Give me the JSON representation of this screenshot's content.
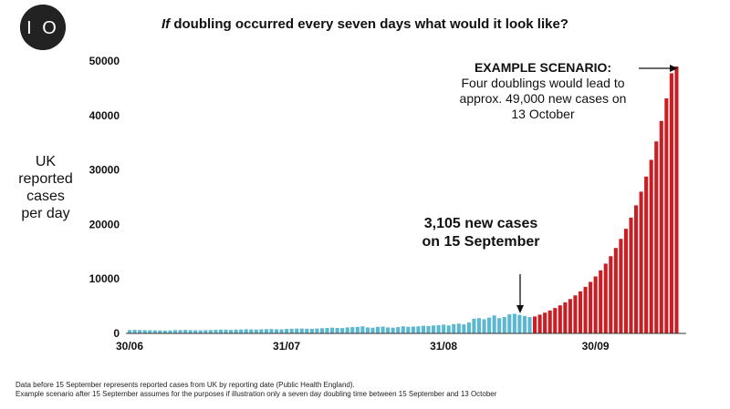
{
  "logo": {
    "text": "I O"
  },
  "header": {
    "title_emphasis": "If",
    "title_rest": " doubling occurred every seven days what would it look like?"
  },
  "axis": {
    "ylabel": "UK\nreported\ncases\nper day"
  },
  "annotations": {
    "scenario_head": "EXAMPLE SCENARIO:",
    "scenario_body": "Four doublings would lead to approx. 49,000 new cases on 13 October",
    "sep_label": "3,105 new cases\non 15 September"
  },
  "footnotes": [
    "Data before 15 September represents reported cases from UK by reporting date (Public Health England).",
    "Example scenario after 15 September assumes for the purposes if illustration only a seven day doubling time between 15 September and 13 October"
  ],
  "chart_data": {
    "type": "bar",
    "ylim": [
      0,
      50000
    ],
    "yticks": [
      0,
      10000,
      20000,
      30000,
      40000,
      50000
    ],
    "xtick_labels": [
      {
        "label": "30/06",
        "day_index": 0
      },
      {
        "label": "31/07",
        "day_index": 31
      },
      {
        "label": "31/08",
        "day_index": 62
      },
      {
        "label": "30/09",
        "day_index": 92
      }
    ],
    "grid": false,
    "colors": {
      "reported": "#5bb8d0",
      "scenario": "#c81e24"
    },
    "series": [
      {
        "name": "reported",
        "start_day_index": 0,
        "values": [
          600,
          650,
          620,
          600,
          580,
          560,
          540,
          500,
          550,
          600,
          620,
          650,
          600,
          580,
          560,
          600,
          620,
          650,
          700,
          680,
          650,
          700,
          720,
          760,
          730,
          700,
          750,
          780,
          800,
          760,
          740,
          820,
          850,
          880,
          900,
          860,
          840,
          900,
          950,
          1000,
          1050,
          1000,
          980,
          1100,
          1150,
          1200,
          1300,
          1100,
          1050,
          1200,
          1250,
          1100,
          1050,
          1150,
          1300,
          1200,
          1250,
          1300,
          1400,
          1350,
          1450,
          1500,
          1600,
          1450,
          1700,
          1800,
          1650,
          2000,
          2700,
          2800,
          2600,
          2900,
          3300,
          2800,
          3000,
          3500,
          3600,
          3400,
          3200,
          3000
        ]
      },
      {
        "name": "scenario",
        "start_day_index": 80,
        "values": [
          3105,
          3436,
          3802,
          4206,
          4655,
          5151,
          5700,
          6307,
          6978,
          7721,
          8544,
          9454,
          10461,
          11576,
          12809,
          14173,
          15683,
          17354,
          19202,
          21248,
          23511,
          26016,
          28787,
          31853,
          35246,
          39000,
          43155,
          47752,
          49000
        ]
      }
    ]
  }
}
